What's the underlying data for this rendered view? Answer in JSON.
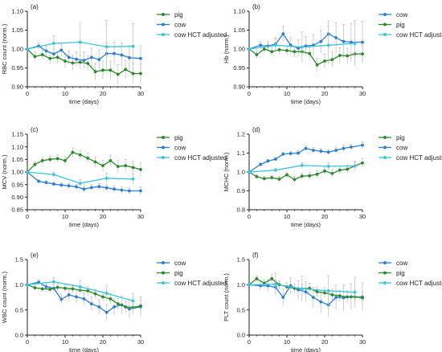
{
  "colors": {
    "pig": "#2a8a2a",
    "cow": "#2a7fd4",
    "cow_hct": "#3cc4e0",
    "axis": "#222222",
    "error": "#bbbbbb"
  },
  "chart_data": [
    {
      "type": "line",
      "panel": "(a)",
      "xlabel": "time (days)",
      "ylabel": "RBC count (norm.)",
      "xlim": [
        0,
        30
      ],
      "ylim": [
        0.9,
        1.1
      ],
      "xticks": [
        "0",
        "10",
        "20",
        "30"
      ],
      "yticks": [
        "0.90",
        "0.95",
        "1.00",
        "1.05",
        "1.10"
      ],
      "legend": [
        "pig",
        "cow",
        "cow HCT adjusted"
      ],
      "series": [
        {
          "name": "pig",
          "color_key": "pig",
          "x": [
            0,
            2,
            4,
            6,
            8,
            10,
            12,
            14,
            16,
            18,
            20,
            22,
            24,
            26,
            28,
            30
          ],
          "y": [
            1.0,
            0.98,
            0.985,
            0.975,
            0.978,
            0.968,
            0.963,
            0.965,
            0.962,
            0.94,
            0.944,
            0.944,
            0.933,
            0.946,
            0.935,
            0.935
          ],
          "err": [
            0,
            0.012,
            0.012,
            0.015,
            0.015,
            0.018,
            0.02,
            0.018,
            0.02,
            0.022,
            0.024,
            0.024,
            0.026,
            0.024,
            0.026,
            0.026
          ]
        },
        {
          "name": "cow",
          "color_key": "cow",
          "x": [
            0,
            3,
            5,
            7,
            9,
            11,
            13,
            15,
            17,
            19,
            21,
            23,
            25,
            27,
            30
          ],
          "y": [
            1.0,
            1.008,
            0.995,
            0.987,
            0.997,
            0.978,
            0.973,
            0.97,
            0.978,
            0.972,
            0.988,
            0.988,
            0.984,
            0.977,
            0.975
          ],
          "err": [
            0,
            0.008,
            0.012,
            0.015,
            0.016,
            0.018,
            0.02,
            0.022,
            0.024,
            0.026,
            0.028,
            0.03,
            0.032,
            0.032,
            0.034
          ]
        },
        {
          "name": "cow HCT adjusted",
          "color_key": "cow_hct",
          "x": [
            0,
            7,
            14,
            21,
            28
          ],
          "y": [
            1.0,
            1.015,
            1.018,
            1.006,
            1.007
          ],
          "err": [
            0,
            0.02,
            0.05,
            0.07,
            0.06
          ]
        }
      ]
    },
    {
      "type": "line",
      "panel": "(b)",
      "xlabel": "time (days)",
      "ylabel": "Hb (norm.)",
      "xlim": [
        0,
        30
      ],
      "ylim": [
        0.9,
        1.1
      ],
      "xticks": [
        "0",
        "10",
        "20",
        "30"
      ],
      "yticks": [
        "0.90",
        "0.95",
        "1.00",
        "1.05",
        "1.10"
      ],
      "legend": [
        "cow",
        "pig",
        "cow HCT adjusted"
      ],
      "series": [
        {
          "name": "cow",
          "color_key": "cow",
          "x": [
            0,
            3,
            5,
            7,
            9,
            11,
            13,
            15,
            17,
            19,
            21,
            23,
            25,
            27,
            30
          ],
          "y": [
            1.0,
            1.01,
            1.008,
            1.013,
            1.04,
            1.01,
            1.002,
            1.008,
            1.01,
            1.02,
            1.04,
            1.03,
            1.02,
            1.018,
            1.018
          ],
          "err": [
            0,
            0.01,
            0.012,
            0.015,
            0.02,
            0.02,
            0.022,
            0.025,
            0.028,
            0.03,
            0.035,
            0.04,
            0.045,
            0.05,
            0.055
          ]
        },
        {
          "name": "pig",
          "color_key": "pig",
          "x": [
            0,
            2,
            4,
            6,
            8,
            10,
            12,
            14,
            16,
            18,
            20,
            22,
            24,
            26,
            28,
            30
          ],
          "y": [
            1.0,
            0.985,
            1.0,
            0.993,
            0.998,
            0.996,
            0.993,
            0.993,
            0.988,
            0.958,
            0.968,
            0.972,
            0.983,
            0.982,
            0.987,
            0.987
          ],
          "err": [
            0,
            0.01,
            0.01,
            0.012,
            0.012,
            0.012,
            0.014,
            0.014,
            0.016,
            0.018,
            0.018,
            0.02,
            0.02,
            0.02,
            0.022,
            0.022
          ]
        },
        {
          "name": "cow HCT adjusted",
          "color_key": "cow_hct",
          "x": [
            0,
            7,
            14,
            21,
            28
          ],
          "y": [
            1.0,
            1.01,
            1.005,
            1.01,
            1.015
          ],
          "err": [
            0,
            0.02,
            0.04,
            0.05,
            0.06
          ]
        }
      ]
    },
    {
      "type": "line",
      "panel": "(c)",
      "xlabel": "time (days)",
      "ylabel": "MCV (norm.)",
      "xlim": [
        0,
        30
      ],
      "ylim": [
        0.85,
        1.15
      ],
      "xticks": [
        "0",
        "10",
        "20",
        "30"
      ],
      "yticks": [
        "0.85",
        "0.90",
        "0.95",
        "1.00",
        "1.05",
        "1.10",
        "1.15"
      ],
      "legend": [
        "pig",
        "cow",
        "cow HCT adjusted"
      ],
      "series": [
        {
          "name": "pig",
          "color_key": "pig",
          "x": [
            0,
            2,
            4,
            6,
            8,
            10,
            12,
            14,
            16,
            18,
            20,
            22,
            24,
            26,
            28,
            30
          ],
          "y": [
            1.0,
            1.03,
            1.045,
            1.05,
            1.053,
            1.045,
            1.078,
            1.068,
            1.055,
            1.04,
            1.025,
            1.045,
            1.022,
            1.025,
            1.018,
            1.01
          ],
          "err": [
            0,
            0.01,
            0.012,
            0.014,
            0.015,
            0.016,
            0.018,
            0.018,
            0.02,
            0.02,
            0.022,
            0.022,
            0.024,
            0.024,
            0.026,
            0.026
          ]
        },
        {
          "name": "cow",
          "color_key": "cow",
          "x": [
            0,
            3,
            5,
            7,
            9,
            11,
            13,
            15,
            17,
            19,
            21,
            23,
            25,
            27,
            30
          ],
          "y": [
            1.0,
            0.963,
            0.958,
            0.952,
            0.948,
            0.945,
            0.941,
            0.932,
            0.938,
            0.942,
            0.937,
            0.932,
            0.928,
            0.925,
            0.925
          ],
          "err": [
            0,
            0.006,
            0.008,
            0.008,
            0.01,
            0.01,
            0.01,
            0.012,
            0.012,
            0.012,
            0.012,
            0.014,
            0.014,
            0.014,
            0.016
          ]
        },
        {
          "name": "cow HCT adjusted",
          "color_key": "cow_hct",
          "x": [
            0,
            7,
            14,
            21,
            28
          ],
          "y": [
            1.0,
            0.99,
            0.955,
            0.975,
            0.972
          ],
          "err": [
            0,
            0.01,
            0.015,
            0.02,
            0.02
          ]
        }
      ]
    },
    {
      "type": "line",
      "panel": "(d)",
      "xlabel": "time (days)",
      "ylabel": "MCHC (norm.)",
      "xlim": [
        0,
        30
      ],
      "ylim": [
        0.8,
        1.2
      ],
      "xticks": [
        "0",
        "10",
        "20",
        "30"
      ],
      "yticks": [
        "0.8",
        "0.9",
        "1.0",
        "1.1",
        "1.2"
      ],
      "legend": [
        "pig",
        "cow",
        "cow HCT adjusted"
      ],
      "series": [
        {
          "name": "pig",
          "color_key": "pig",
          "x": [
            0,
            2,
            4,
            6,
            8,
            10,
            12,
            14,
            16,
            18,
            20,
            22,
            24,
            26,
            28,
            30
          ],
          "y": [
            1.0,
            0.975,
            0.965,
            0.97,
            0.962,
            0.985,
            0.96,
            0.978,
            0.98,
            0.988,
            1.005,
            0.992,
            1.01,
            1.015,
            1.032,
            1.048
          ],
          "err": [
            0,
            0.01,
            0.012,
            0.012,
            0.014,
            0.014,
            0.016,
            0.016,
            0.018,
            0.018,
            0.02,
            0.02,
            0.022,
            0.022,
            0.024,
            0.024
          ]
        },
        {
          "name": "cow",
          "color_key": "cow",
          "x": [
            0,
            3,
            5,
            7,
            9,
            11,
            13,
            15,
            17,
            19,
            21,
            23,
            25,
            27,
            30
          ],
          "y": [
            1.0,
            1.04,
            1.058,
            1.068,
            1.095,
            1.098,
            1.1,
            1.125,
            1.115,
            1.11,
            1.105,
            1.115,
            1.125,
            1.132,
            1.142
          ],
          "err": [
            0,
            0.008,
            0.008,
            0.01,
            0.01,
            0.012,
            0.012,
            0.012,
            0.014,
            0.014,
            0.014,
            0.016,
            0.016,
            0.016,
            0.018
          ]
        },
        {
          "name": "cow HCT adjusted",
          "color_key": "cow_hct",
          "x": [
            0,
            7,
            14,
            21,
            28
          ],
          "y": [
            1.0,
            1.01,
            1.035,
            1.03,
            1.032
          ],
          "err": [
            0,
            0.01,
            0.015,
            0.02,
            0.02
          ]
        }
      ]
    },
    {
      "type": "line",
      "panel": "(e)",
      "xlabel": "time (days)",
      "ylabel": "WBC count (norm.)",
      "xlim": [
        0,
        30
      ],
      "ylim": [
        0.0,
        1.5
      ],
      "xticks": [
        "0",
        "10",
        "20",
        "30"
      ],
      "yticks": [
        "0.0",
        "0.5",
        "1.0",
        "1.5"
      ],
      "legend": [
        "cow",
        "pig",
        "cow HCT adjusted"
      ],
      "series": [
        {
          "name": "cow",
          "color_key": "cow",
          "x": [
            0,
            3,
            5,
            7,
            9,
            11,
            13,
            15,
            17,
            19,
            21,
            23,
            25,
            27,
            30
          ],
          "y": [
            1.0,
            1.05,
            0.96,
            0.93,
            0.71,
            0.8,
            0.76,
            0.72,
            0.62,
            0.56,
            0.45,
            0.56,
            0.6,
            0.52,
            0.56
          ],
          "err": [
            0,
            0.05,
            0.06,
            0.08,
            0.1,
            0.1,
            0.12,
            0.12,
            0.14,
            0.14,
            0.16,
            0.16,
            0.18,
            0.18,
            0.2
          ]
        },
        {
          "name": "pig",
          "color_key": "pig",
          "x": [
            0,
            2,
            4,
            6,
            8,
            10,
            12,
            14,
            16,
            18,
            20,
            22,
            24,
            26,
            28,
            30
          ],
          "y": [
            1.0,
            0.94,
            0.92,
            0.91,
            0.95,
            0.93,
            0.92,
            0.89,
            0.88,
            0.82,
            0.76,
            0.72,
            0.62,
            0.56,
            0.55,
            0.58
          ],
          "err": [
            0,
            0.05,
            0.06,
            0.06,
            0.07,
            0.07,
            0.08,
            0.08,
            0.09,
            0.09,
            0.1,
            0.1,
            0.11,
            0.11,
            0.12,
            0.12
          ]
        },
        {
          "name": "cow HCT adjusted",
          "color_key": "cow_hct",
          "x": [
            0,
            7,
            14,
            21,
            28
          ],
          "y": [
            1.0,
            1.06,
            0.96,
            0.83,
            0.68
          ],
          "err": [
            0,
            0.08,
            0.12,
            0.15,
            0.15
          ]
        }
      ]
    },
    {
      "type": "line",
      "panel": "(f)",
      "xlabel": "time (days)",
      "ylabel": "PLT count (norm.)",
      "xlim": [
        0,
        30
      ],
      "ylim": [
        0.0,
        1.5
      ],
      "xticks": [
        "0",
        "10",
        "20",
        "30"
      ],
      "yticks": [
        "0.0",
        "0.5",
        "1.0",
        "1.5"
      ],
      "legend": [
        "cow",
        "pig",
        "cow HCT adjusted"
      ],
      "series": [
        {
          "name": "cow",
          "color_key": "cow",
          "x": [
            0,
            3,
            5,
            7,
            9,
            11,
            13,
            15,
            17,
            19,
            21,
            23,
            25,
            27,
            30
          ],
          "y": [
            1.0,
            0.98,
            0.98,
            0.95,
            0.75,
            0.98,
            0.9,
            0.86,
            0.75,
            0.66,
            0.6,
            0.75,
            0.74,
            0.76,
            0.76
          ],
          "err": [
            0,
            0.1,
            0.12,
            0.14,
            0.16,
            0.16,
            0.18,
            0.2,
            0.2,
            0.22,
            0.24,
            0.24,
            0.26,
            0.26,
            0.28
          ]
        },
        {
          "name": "pig",
          "color_key": "pig",
          "x": [
            0,
            2,
            4,
            6,
            8,
            10,
            12,
            14,
            16,
            18,
            20,
            22,
            24,
            26,
            28,
            30
          ],
          "y": [
            1.0,
            1.12,
            1.03,
            1.12,
            1.0,
            0.96,
            0.93,
            0.92,
            0.93,
            0.86,
            0.84,
            0.8,
            0.78,
            0.76,
            0.76,
            0.74
          ],
          "err": [
            0,
            0.06,
            0.07,
            0.08,
            0.08,
            0.08,
            0.09,
            0.09,
            0.1,
            0.1,
            0.1,
            0.11,
            0.11,
            0.12,
            0.12,
            0.12
          ]
        },
        {
          "name": "cow HCT adjusted",
          "color_key": "cow_hct",
          "x": [
            0,
            7,
            14,
            21,
            28
          ],
          "y": [
            1.0,
            1.01,
            0.92,
            0.88,
            0.85
          ],
          "err": [
            0,
            0.22,
            0.25,
            0.3,
            0.3
          ]
        }
      ]
    }
  ]
}
